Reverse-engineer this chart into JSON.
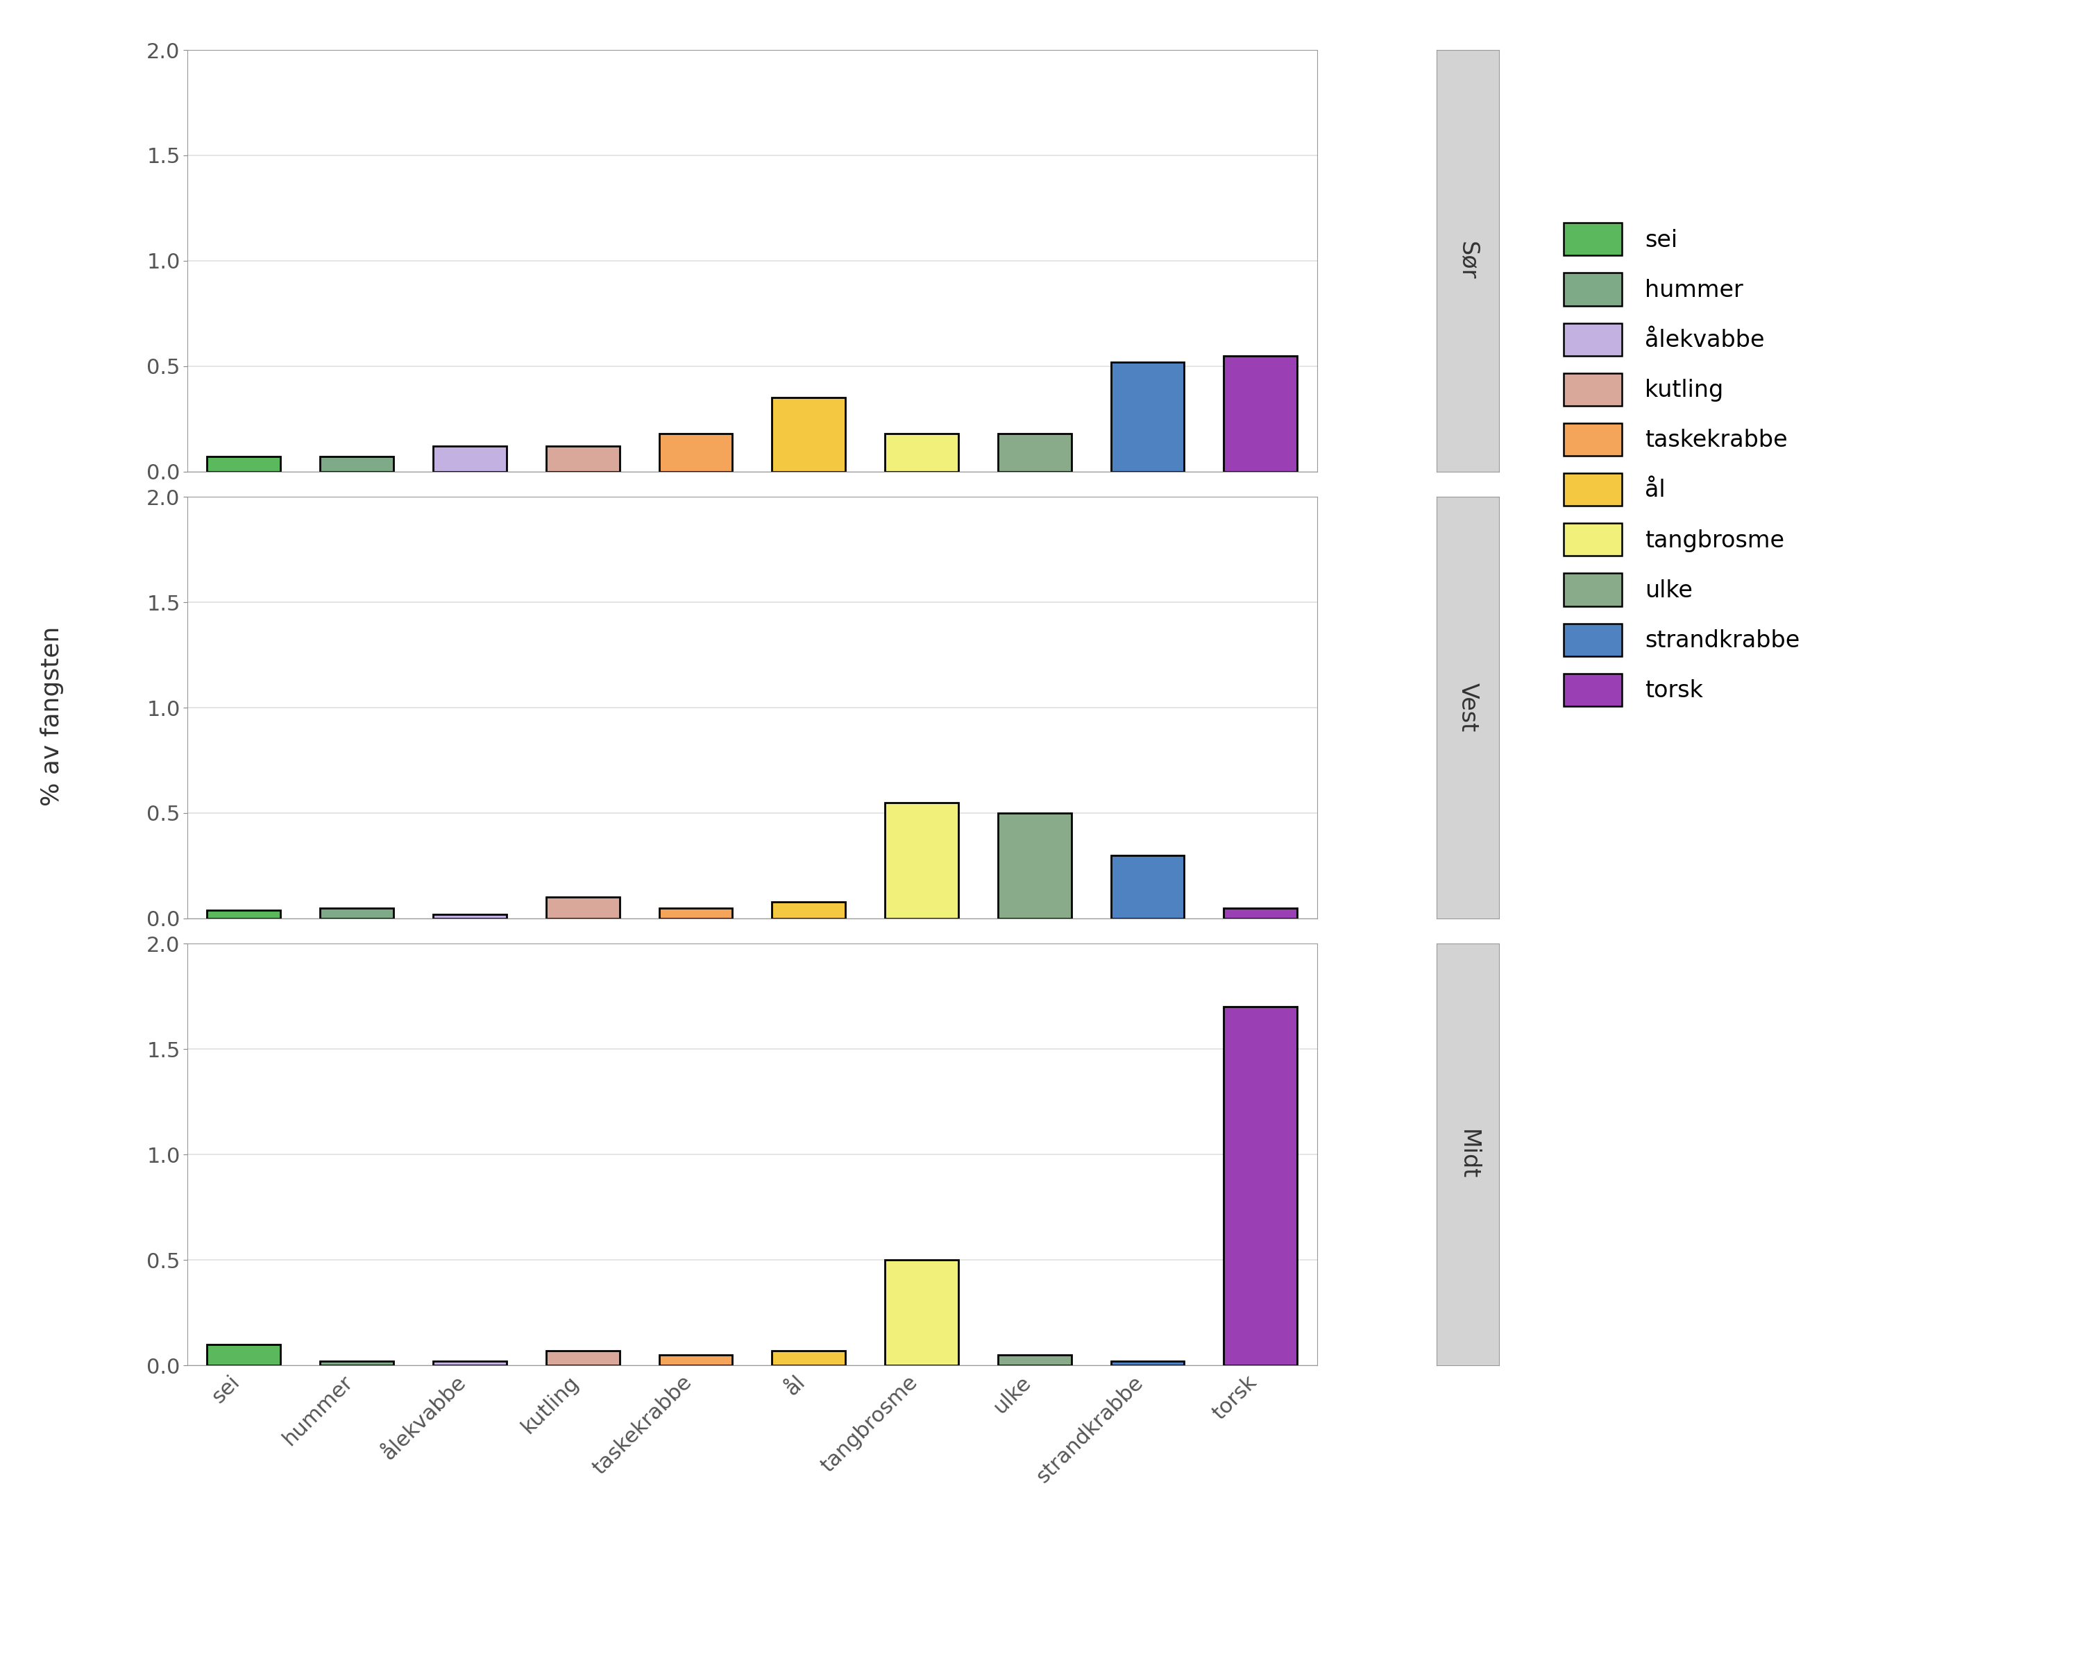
{
  "species": [
    "sei",
    "hummer",
    "ålekvabbe",
    "kutling",
    "taskekrabbe",
    "ål",
    "tangbrosme",
    "ulke",
    "strandkrabbe",
    "torsk"
  ],
  "colors": [
    "#5cb85c",
    "#7faa87",
    "#c3b1e1",
    "#d9a89a",
    "#f5a55a",
    "#f5c842",
    "#f0f07a",
    "#8aab8a",
    "#4f82c0",
    "#9b3fb5"
  ],
  "regions": [
    "Sør",
    "Vest",
    "Midt"
  ],
  "data": {
    "Sør": [
      0.07,
      0.07,
      0.12,
      0.12,
      0.18,
      0.35,
      0.18,
      0.18,
      0.52,
      0.55
    ],
    "Vest": [
      0.04,
      0.05,
      0.02,
      0.1,
      0.05,
      0.08,
      0.55,
      0.5,
      0.3,
      0.05
    ],
    "Midt": [
      0.1,
      0.02,
      0.02,
      0.07,
      0.05,
      0.07,
      0.5,
      0.05,
      0.02,
      1.7
    ]
  },
  "ylim": [
    0,
    2.0
  ],
  "yticks": [
    0.0,
    0.5,
    1.0,
    1.5,
    2.0
  ],
  "ylabel": "% av fangsten",
  "background_plot": "#ffffff",
  "background_fig": "#ffffff",
  "grid_color": "#e0e0e0",
  "bar_edge_color": "#000000",
  "bar_edge_width": 2.0,
  "strip_bg": "#d3d3d3",
  "legend_items": [
    "sei",
    "hummer",
    "ålekvabbe",
    "kutling",
    "taskekrabbe",
    "ål",
    "tangbrosme",
    "ulke",
    "strandkrabbe",
    "torsk"
  ]
}
